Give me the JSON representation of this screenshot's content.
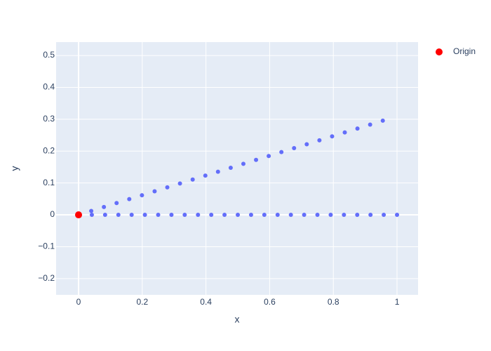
{
  "chart_data": {
    "type": "scatter",
    "x_label": "x",
    "y_label": "y",
    "xlim": [
      -0.0705,
      1.066
    ],
    "ylim": [
      -0.251,
      0.542
    ],
    "xticks": [
      0,
      0.2,
      0.4,
      0.6,
      0.8,
      1
    ],
    "yticks": [
      {
        "value": -0.2,
        "label": "−0.2"
      },
      {
        "value": -0.1,
        "label": "−0.1"
      },
      0,
      0.1,
      0.2,
      0.3,
      0.4,
      0.5
    ],
    "grid": true,
    "legend_position": "right",
    "series": [
      {
        "color": "#636efa",
        "x": [
          0.0398,
          0.0796,
          0.1194,
          0.1592,
          0.199,
          0.2388,
          0.2786,
          0.3184,
          0.3583,
          0.3981,
          0.4378,
          0.4777,
          0.5175,
          0.5573,
          0.5971,
          0.6369,
          0.6767,
          0.7165,
          0.7563,
          0.7961,
          0.8359,
          0.8757,
          0.9155,
          0.9553
        ],
        "values": [
          0.0123,
          0.0246,
          0.0369,
          0.0493,
          0.0616,
          0.0739,
          0.0862,
          0.0985,
          0.1108,
          0.1231,
          0.1354,
          0.1478,
          0.1601,
          0.1724,
          0.1847,
          0.197,
          0.2093,
          0.2216,
          0.2339,
          0.2463,
          0.2586,
          0.2709,
          0.2832,
          0.2955
        ]
      },
      {
        "color": "#636efa",
        "x": [
          0.0417,
          0.0833,
          0.125,
          0.1667,
          0.2083,
          0.25,
          0.2917,
          0.3333,
          0.375,
          0.4167,
          0.4583,
          0.5,
          0.5417,
          0.5833,
          0.625,
          0.6667,
          0.7083,
          0.75,
          0.7917,
          0.8333,
          0.875,
          0.9167,
          0.9583,
          1
        ],
        "values": [
          0,
          0,
          0,
          0,
          0,
          0,
          0,
          0,
          0,
          0,
          0,
          0,
          0,
          0,
          0,
          0,
          0,
          0,
          0,
          0,
          0,
          0,
          0,
          0
        ]
      },
      {
        "name": "Origin",
        "color": "#ff0000",
        "x": [
          0
        ],
        "values": [
          0
        ]
      }
    ]
  }
}
